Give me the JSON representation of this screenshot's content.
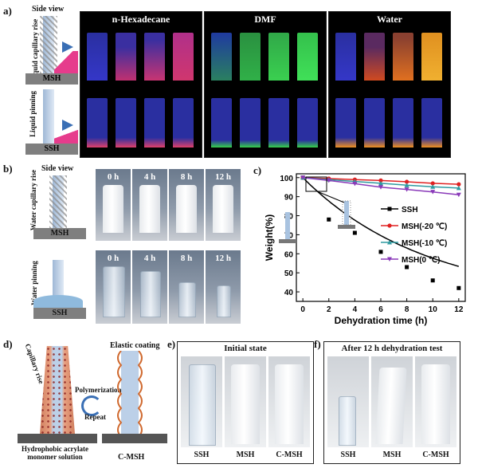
{
  "panel_a": {
    "label": "a)",
    "side_view": "Side view",
    "liquid_capillary_rise": "Liquid capillary rise",
    "liquid_pinning": "Liquid pinning",
    "msh": "MSH",
    "ssh": "SSH",
    "groups": [
      "n-Hexadecane",
      "DMF",
      "Water"
    ],
    "colors": {
      "hexadecane": "#e0406a",
      "dmf": "#37d04a",
      "water": "#f09020"
    }
  },
  "panel_b": {
    "label": "b)",
    "side_view": "Side view",
    "water_capillary_rise": "Water capillary rise",
    "water_pinning": "Water pinning",
    "msh": "MSH",
    "ssh": "SSH",
    "times": [
      "0 h",
      "4 h",
      "8 h",
      "12 h"
    ]
  },
  "panel_c": {
    "label": "c)",
    "chart_data": {
      "type": "scatter",
      "xlabel": "Dehydration time (h)",
      "ylabel": "Weight(%)",
      "xlim": [
        -0.5,
        12.5
      ],
      "ylim": [
        35,
        102
      ],
      "xticks": [
        0,
        2,
        4,
        6,
        8,
        10,
        12
      ],
      "yticks": [
        40,
        50,
        60,
        70,
        80,
        90,
        100
      ],
      "legend_position": "right",
      "series": [
        {
          "name": "SSH",
          "color": "#000000",
          "marker": "square",
          "x": [
            0,
            2,
            4,
            6,
            8,
            10,
            12
          ],
          "y": [
            100,
            78,
            71,
            61,
            53,
            46,
            42
          ]
        },
        {
          "name": "MSH(-20 ℃)",
          "color": "#e02020",
          "marker": "circle",
          "x": [
            0,
            2,
            4,
            6,
            8,
            10,
            12
          ],
          "y": [
            100,
            99.5,
            99,
            98.5,
            97.8,
            97,
            96.5
          ]
        },
        {
          "name": "MSH(-10 ℃)",
          "color": "#2f9aa0",
          "marker": "triangle",
          "x": [
            0,
            2,
            4,
            6,
            8,
            10,
            12
          ],
          "y": [
            100,
            99,
            98,
            97,
            96,
            95.2,
            94.5
          ]
        },
        {
          "name": "MSH(0 ℃)",
          "color": "#8a3ab9",
          "marker": "triangle-down",
          "x": [
            0,
            2,
            4,
            6,
            8,
            10,
            12
          ],
          "y": [
            100,
            98.5,
            96.8,
            95,
            93.8,
            92.5,
            91
          ]
        }
      ]
    }
  },
  "panel_d": {
    "label": "d)",
    "capillary_rise": "Capillary rise",
    "polymerization": "Polymerization",
    "repeat": "Repeat",
    "elastic_coating": "Elastic coating",
    "monomer_solution": "Hydrophobic acrylate monomer solution",
    "cmsh": "C-MSH"
  },
  "panel_e": {
    "label": "e)",
    "title": "Initial state",
    "samples": [
      "SSH",
      "MSH",
      "C-MSH"
    ]
  },
  "panel_f": {
    "label": "f)",
    "title": "After 12 h dehydration test",
    "samples": [
      "SSH",
      "MSH",
      "C-MSH"
    ]
  }
}
